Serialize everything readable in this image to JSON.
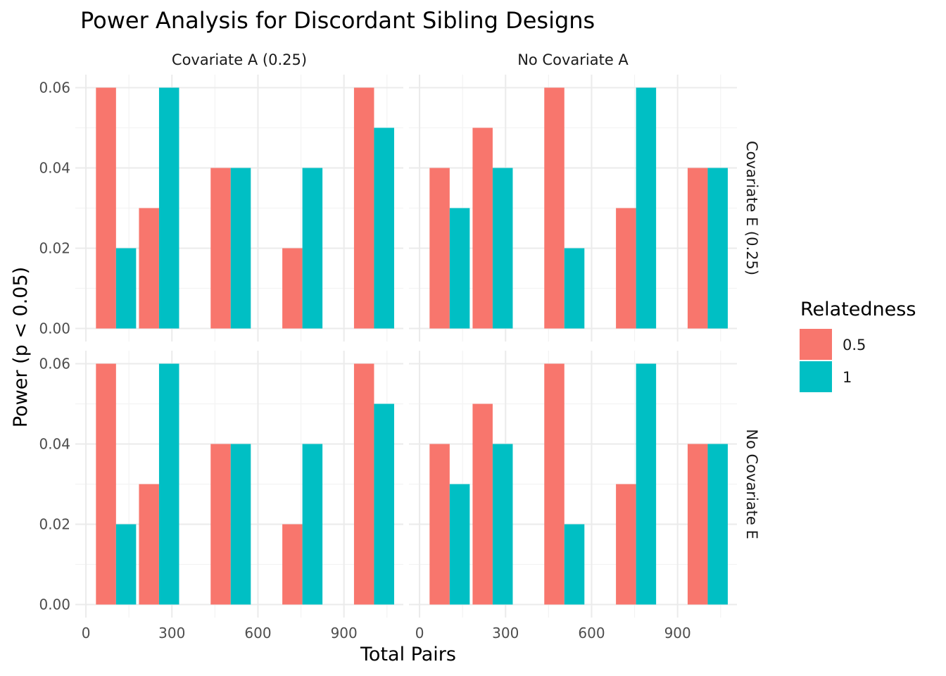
{
  "chart_data": {
    "type": "bar",
    "title": "Power Analysis for Discordant Sibling Designs",
    "xlabel": "Total Pairs",
    "ylabel": "Power (p < 0.05)",
    "xlim": [
      0,
      1100
    ],
    "ylim": [
      0,
      0.06
    ],
    "x_ticks": [
      "0",
      "300",
      "600",
      "900"
    ],
    "x_tick_values": [
      0,
      300,
      600,
      900
    ],
    "y_ticks": [
      "0.00",
      "0.02",
      "0.04",
      "0.06"
    ],
    "y_tick_values": [
      0,
      0.02,
      0.04,
      0.06
    ],
    "grid": true,
    "legend": {
      "title": "Relatedness",
      "placement": "right",
      "entries": [
        {
          "label": "0.5",
          "color": "#F8766D"
        },
        {
          "label": "1",
          "color": "#00BFC4"
        }
      ]
    },
    "facet_columns": [
      "Covariate A (0.25)",
      "No Covariate A"
    ],
    "facet_rows": [
      "Covariate E (0.25)",
      "No Covariate E"
    ],
    "panels": [
      {
        "col": "Covariate A (0.25)",
        "row": "Covariate E (0.25)",
        "series": [
          {
            "name": "0.5",
            "x": [
              70,
              220,
              470,
              720,
              970
            ],
            "values": [
              0.06,
              0.03,
              0.04,
              0.02,
              0.06
            ]
          },
          {
            "name": "1",
            "x": [
              140,
              290,
              540,
              790,
              1040
            ],
            "values": [
              0.02,
              0.06,
              0.04,
              0.04,
              0.05
            ]
          }
        ]
      },
      {
        "col": "No Covariate A",
        "row": "Covariate E (0.25)",
        "series": [
          {
            "name": "0.5",
            "x": [
              70,
              220,
              470,
              720,
              970
            ],
            "values": [
              0.04,
              0.05,
              0.06,
              0.03,
              0.04
            ]
          },
          {
            "name": "1",
            "x": [
              140,
              290,
              540,
              790,
              1040
            ],
            "values": [
              0.03,
              0.04,
              0.02,
              0.06,
              0.04
            ]
          }
        ]
      },
      {
        "col": "Covariate A (0.25)",
        "row": "No Covariate E",
        "series": [
          {
            "name": "0.5",
            "x": [
              70,
              220,
              470,
              720,
              970
            ],
            "values": [
              0.06,
              0.03,
              0.04,
              0.02,
              0.06
            ]
          },
          {
            "name": "1",
            "x": [
              140,
              290,
              540,
              790,
              1040
            ],
            "values": [
              0.02,
              0.06,
              0.04,
              0.04,
              0.05
            ]
          }
        ]
      },
      {
        "col": "No Covariate A",
        "row": "No Covariate E",
        "series": [
          {
            "name": "0.5",
            "x": [
              70,
              220,
              470,
              720,
              970
            ],
            "values": [
              0.04,
              0.05,
              0.06,
              0.03,
              0.04
            ]
          },
          {
            "name": "1",
            "x": [
              140,
              290,
              540,
              790,
              1040
            ],
            "values": [
              0.03,
              0.04,
              0.02,
              0.06,
              0.04
            ]
          }
        ]
      }
    ],
    "bar_width": 70
  }
}
